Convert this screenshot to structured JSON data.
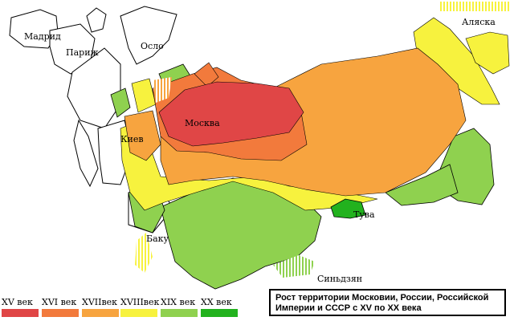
{
  "map": {
    "cities": {
      "madrid": "Мадрид",
      "paris": "Париж",
      "oslo": "Осло",
      "moscow": "Москва",
      "kiev": "Киев",
      "baku": "Баку",
      "tuva": "Тува",
      "xinjiang": "Синьдзян",
      "alaska": "Аляска"
    },
    "title_line1": "Рост территории Московии, России, Российской",
    "title_line2": "Империи и СССР с XV по XX века"
  },
  "legend": [
    {
      "label": "XV век",
      "color": "#e04646"
    },
    {
      "label": "XVI век",
      "color": "#f27a3c"
    },
    {
      "label": "XVIIвек",
      "color": "#f7a43f"
    },
    {
      "label": "XVIIIвек",
      "color": "#f7f23e"
    },
    {
      "label": "XIX век",
      "color": "#8fd14f"
    },
    {
      "label": "XX век",
      "color": "#22b21e"
    }
  ],
  "colors": {
    "border": "#000000",
    "background": "#ffffff"
  }
}
